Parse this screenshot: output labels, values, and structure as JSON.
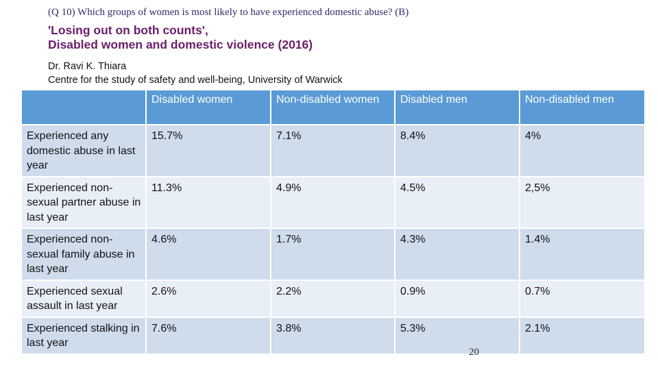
{
  "question": "(Q 10) Which groups of women is most likely to have experienced domestic abuse? (B)",
  "title": {
    "line1": "'Losing out on both counts',",
    "line2": "Disabled women and domestic violence (2016)"
  },
  "author": {
    "name": "Dr. Ravi K. Thiara",
    "affiliation": "Centre for the study of safety and well-being, University of Warwick"
  },
  "table": {
    "headers": [
      "",
      "Disabled women",
      "Non-disabled women",
      "Disabled men",
      "Non-disabled men"
    ],
    "rows": [
      {
        "label": "Experienced any domestic abuse in last year",
        "values": [
          "15.7%",
          "7.1%",
          "8.4%",
          "4%"
        ]
      },
      {
        "label": "Experienced non-sexual partner abuse in last year",
        "values": [
          "11.3%",
          "4.9%",
          "4.5%",
          "2,5%"
        ]
      },
      {
        "label": "Experienced non-sexual family abuse in last year",
        "values": [
          "4.6%",
          "1.7%",
          "4.3%",
          "1.4%"
        ]
      },
      {
        "label": "Experienced sexual assault in last year",
        "values": [
          "2.6%",
          "2.2%",
          "0.9%",
          "0.7%"
        ]
      },
      {
        "label": "Experienced stalking in last year",
        "values": [
          "7.6%",
          "3.8%",
          "5.3%",
          "2.1%"
        ]
      }
    ]
  },
  "page_number": "20",
  "colors": {
    "header_bg": "#5b9bd5",
    "row_dark": "#cfdcec",
    "row_light": "#e9eff7",
    "title": "#6a1f6a",
    "question": "#2c2c6a"
  }
}
